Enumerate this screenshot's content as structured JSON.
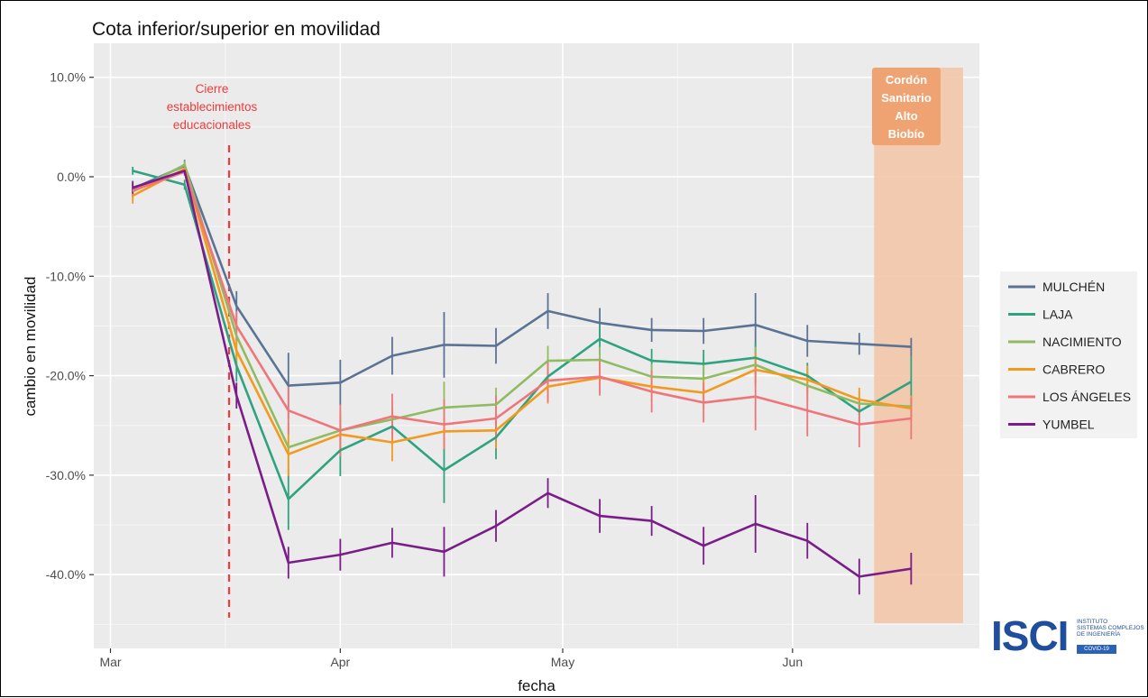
{
  "chart_data": {
    "type": "line",
    "title": "Cota inferior/superior en movilidad",
    "xlabel": "fecha",
    "ylabel": "cambio en movilidad",
    "x_ticks": [
      "Mar",
      "Apr",
      "May",
      "Jun"
    ],
    "y_ticks": [
      "10.0%",
      "0.0%",
      "-10.0%",
      "-20.0%",
      "-30.0%",
      "-40.0%"
    ],
    "ylim": [
      -47,
      11
    ],
    "grid": true,
    "legend_position": "right",
    "x": [
      "2020-03-04",
      "2020-03-11",
      "2020-03-18",
      "2020-03-25",
      "2020-04-01",
      "2020-04-08",
      "2020-04-15",
      "2020-04-22",
      "2020-04-29",
      "2020-05-06",
      "2020-05-13",
      "2020-05-20",
      "2020-05-27",
      "2020-06-03",
      "2020-06-10",
      "2020-06-17"
    ],
    "series": [
      {
        "name": "MULCHÉN",
        "color": "#5a7394",
        "values": [
          -1.2,
          1.1,
          -13,
          -21,
          -20.7,
          -18,
          -16.9,
          -17,
          -13.5,
          -14.7,
          -15.4,
          -15.5,
          -14.9,
          -16.5,
          -16.8,
          -17.1
        ],
        "err": [
          0.8,
          0.6,
          1.5,
          3.3,
          2.3,
          1.9,
          3.3,
          1.8,
          1.8,
          1.5,
          1.2,
          1.3,
          3.2,
          1.6,
          1.1,
          0.9
        ]
      },
      {
        "name": "LAJA",
        "color": "#2fa37f",
        "values": [
          0.6,
          -0.8,
          -19,
          -32.4,
          -27.5,
          -25.1,
          -29.5,
          -26.2,
          -20.1,
          -16.3,
          -18.5,
          -18.8,
          -18.2,
          -20,
          -23.6,
          -20.6
        ],
        "err": [
          0.4,
          0.5,
          1.6,
          3.1,
          2.6,
          1.8,
          3.3,
          2.2,
          1.5,
          1.6,
          1.2,
          1.4,
          1.6,
          1.3,
          1.4,
          2.6
        ]
      },
      {
        "name": "NACIMIENTO",
        "color": "#8fbb61",
        "values": [
          -1.5,
          1.2,
          -16,
          -27.2,
          -25.5,
          -24.4,
          -23.2,
          -22.9,
          -18.5,
          -18.4,
          -20.1,
          -20.3,
          -18.9,
          -21,
          -22.8,
          -23.1
        ],
        "err": [
          0.6,
          0.4,
          1.4,
          2.4,
          2.1,
          1.8,
          2.6,
          1.7,
          1.5,
          1.3,
          1.3,
          1.5,
          1.8,
          1.6,
          1.2,
          1.1
        ]
      },
      {
        "name": "CABRERO",
        "color": "#f39a1e",
        "values": [
          -1.9,
          0.8,
          -17.5,
          -27.9,
          -25.9,
          -26.7,
          -25.6,
          -25.5,
          -21.1,
          -20.2,
          -21.1,
          -21.7,
          -19.4,
          -20.4,
          -22.4,
          -23.3
        ],
        "err": [
          0.8,
          0.5,
          1.5,
          2.2,
          2.0,
          1.9,
          1.6,
          1.8,
          1.7,
          1.5,
          1.6,
          1.6,
          1.7,
          1.4,
          1.2,
          1.2
        ]
      },
      {
        "name": "LOS ÁNGELES",
        "color": "#f0757a",
        "values": [
          -1.4,
          0.5,
          -15,
          -23.5,
          -25.5,
          -24.1,
          -24.9,
          -24.3,
          -20.5,
          -20.1,
          -21.6,
          -22.7,
          -22.1,
          -23.5,
          -24.9,
          -24.3
        ],
        "err": [
          0.6,
          0.4,
          1.5,
          2.4,
          2.6,
          2.3,
          2.5,
          2.3,
          2.1,
          1.9,
          2.1,
          2.0,
          3.4,
          2.6,
          2.3,
          2.1
        ]
      },
      {
        "name": "YUMBEL",
        "color": "#7a1d89",
        "values": [
          -1.1,
          0.6,
          -22,
          -38.8,
          -38,
          -36.8,
          -37.7,
          -35.1,
          -31.8,
          -34.1,
          -34.6,
          -37.1,
          -34.9,
          -36.6,
          -40.2,
          -39.4
        ],
        "err": [
          0.6,
          0.4,
          1.3,
          1.6,
          1.6,
          1.5,
          2.5,
          1.6,
          1.5,
          1.7,
          1.5,
          1.9,
          2.9,
          1.8,
          1.8,
          1.6
        ]
      }
    ],
    "annotations": [
      {
        "id": "cierre",
        "text": [
          "Cierre",
          "establecimientos",
          "educacionales"
        ],
        "x": "2020-03-17",
        "color": "#ef3b3b"
      },
      {
        "id": "cordon",
        "text": [
          "Cordón",
          "Sanitario",
          "Alto",
          "Biobío"
        ],
        "x_start": "2020-06-12",
        "x_end": "2020-06-24",
        "fill": "#f3c7a8",
        "label_bg": "#f0a372"
      }
    ]
  },
  "logo": {
    "mark": "ISCI",
    "lines": [
      "INSTITUTO",
      "SISTEMAS COMPLEJOS",
      "DE INGENIERÍA"
    ],
    "badge": "COVID-19"
  }
}
